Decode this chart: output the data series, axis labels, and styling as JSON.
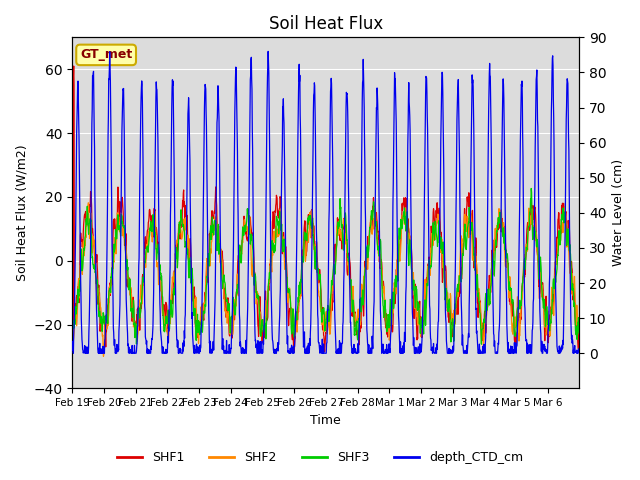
{
  "title": "Soil Heat Flux",
  "ylabel_left": "Soil Heat Flux (W/m2)",
  "ylabel_right": "Water Level (cm)",
  "xlabel": "Time",
  "ylim_left": [
    -40,
    70
  ],
  "ylim_right": [
    -10,
    90
  ],
  "background_color": "#ffffff",
  "plot_bg_color": "#dcdcdc",
  "grid_color": "#ffffff",
  "colors": {
    "SHF1": "#dd0000",
    "SHF2": "#ff8800",
    "SHF3": "#00cc00",
    "depth_CTD_cm": "#0000ee"
  },
  "tick_labels": [
    "Feb 19",
    "Feb 20",
    "Feb 21",
    "Feb 22",
    "Feb 23",
    "Feb 24",
    "Feb 25",
    "Feb 26",
    "Feb 27",
    "Feb 28",
    "Mar 1",
    "Mar 2",
    "Mar 3",
    "Mar 4",
    "Mar 5",
    "Mar 6"
  ],
  "annotation_text": "GT_met",
  "annotation_bg": "#ffffaa",
  "annotation_border": "#ccaa00",
  "figsize": [
    6.4,
    4.8
  ],
  "dpi": 100
}
